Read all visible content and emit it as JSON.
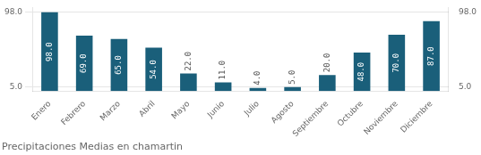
{
  "chart_data": {
    "type": "bar",
    "title": "Precipitaciones Medias en chamartin",
    "categories": [
      "Enero",
      "Febrero",
      "Marzo",
      "Abril",
      "Mayo",
      "Junio",
      "Julio",
      "Agosto",
      "Septiembre",
      "Octubre",
      "Noviembre",
      "Diciembre"
    ],
    "values": [
      98.0,
      69.0,
      65.0,
      54.0,
      22.0,
      11.0,
      4.0,
      5.0,
      20.0,
      48.0,
      70.0,
      87.0
    ],
    "value_labels": [
      "98.0",
      "69.0",
      "65.0",
      "54.0",
      "22.0",
      "11.0",
      "4.0",
      "5.0",
      "20.0",
      "48.0",
      "70.0",
      "87.0"
    ],
    "data_labels": true,
    "color": "#1a5f7a",
    "ylim": [
      0,
      104
    ],
    "yticks": [
      {
        "value": 5.0,
        "label": "5.0"
      },
      {
        "value": 98.0,
        "label": "98.0"
      }
    ],
    "y2lim": [
      0,
      104
    ],
    "y2ticks": [
      {
        "value": 5.0,
        "label": "5.0"
      },
      {
        "value": 98.0,
        "label": "98.0"
      }
    ],
    "grid": true
  }
}
